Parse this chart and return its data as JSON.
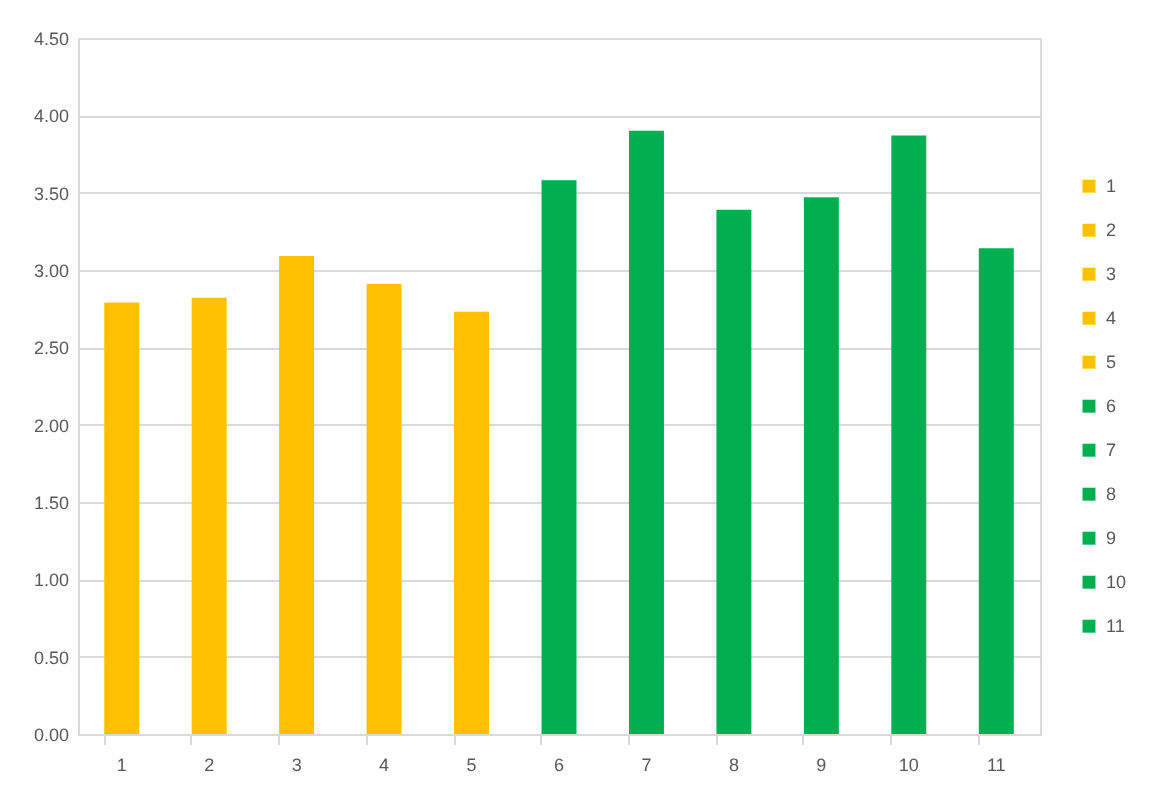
{
  "chart_data": {
    "type": "bar",
    "categories": [
      "1",
      "2",
      "3",
      "4",
      "5",
      "6",
      "7",
      "8",
      "9",
      "10",
      "11"
    ],
    "series": [
      {
        "name": "1",
        "color": "#ffc000",
        "values": [
          2.79,
          null,
          null,
          null,
          null,
          null,
          null,
          null,
          null,
          null,
          null
        ]
      },
      {
        "name": "2",
        "color": "#ffc000",
        "values": [
          null,
          2.82,
          null,
          null,
          null,
          null,
          null,
          null,
          null,
          null,
          null
        ]
      },
      {
        "name": "3",
        "color": "#ffc000",
        "values": [
          null,
          null,
          3.09,
          null,
          null,
          null,
          null,
          null,
          null,
          null,
          null
        ]
      },
      {
        "name": "4",
        "color": "#ffc000",
        "values": [
          null,
          null,
          null,
          2.91,
          null,
          null,
          null,
          null,
          null,
          null,
          null
        ]
      },
      {
        "name": "5",
        "color": "#ffc000",
        "values": [
          null,
          null,
          null,
          null,
          2.73,
          null,
          null,
          null,
          null,
          null,
          null
        ]
      },
      {
        "name": "6",
        "color": "#00b050",
        "values": [
          null,
          null,
          null,
          null,
          null,
          3.58,
          null,
          null,
          null,
          null,
          null
        ]
      },
      {
        "name": "7",
        "color": "#00b050",
        "values": [
          null,
          null,
          null,
          null,
          null,
          null,
          3.9,
          null,
          null,
          null,
          null
        ]
      },
      {
        "name": "8",
        "color": "#00b050",
        "values": [
          null,
          null,
          null,
          null,
          null,
          null,
          null,
          3.39,
          null,
          null,
          null
        ]
      },
      {
        "name": "9",
        "color": "#00b050",
        "values": [
          null,
          null,
          null,
          null,
          null,
          null,
          null,
          null,
          3.47,
          null,
          null
        ]
      },
      {
        "name": "10",
        "color": "#00b050",
        "values": [
          null,
          null,
          null,
          null,
          null,
          null,
          null,
          null,
          null,
          3.87,
          null
        ]
      },
      {
        "name": "11",
        "color": "#00b050",
        "values": [
          null,
          null,
          null,
          null,
          null,
          null,
          null,
          null,
          null,
          null,
          3.14
        ]
      }
    ],
    "ylim": [
      0,
      4.5
    ],
    "yticks": [
      {
        "value": 0,
        "label": "0.00"
      },
      {
        "value": 0.5,
        "label": "0.50"
      },
      {
        "value": 1,
        "label": "1.00"
      },
      {
        "value": 1.5,
        "label": "1.50"
      },
      {
        "value": 2,
        "label": "2.00"
      },
      {
        "value": 2.5,
        "label": "2.50"
      },
      {
        "value": 3,
        "label": "3.00"
      },
      {
        "value": 3.5,
        "label": "3.50"
      },
      {
        "value": 4,
        "label": "4.00"
      },
      {
        "value": 4.5,
        "label": "4.50"
      }
    ],
    "grid": "y",
    "legend": "right"
  }
}
